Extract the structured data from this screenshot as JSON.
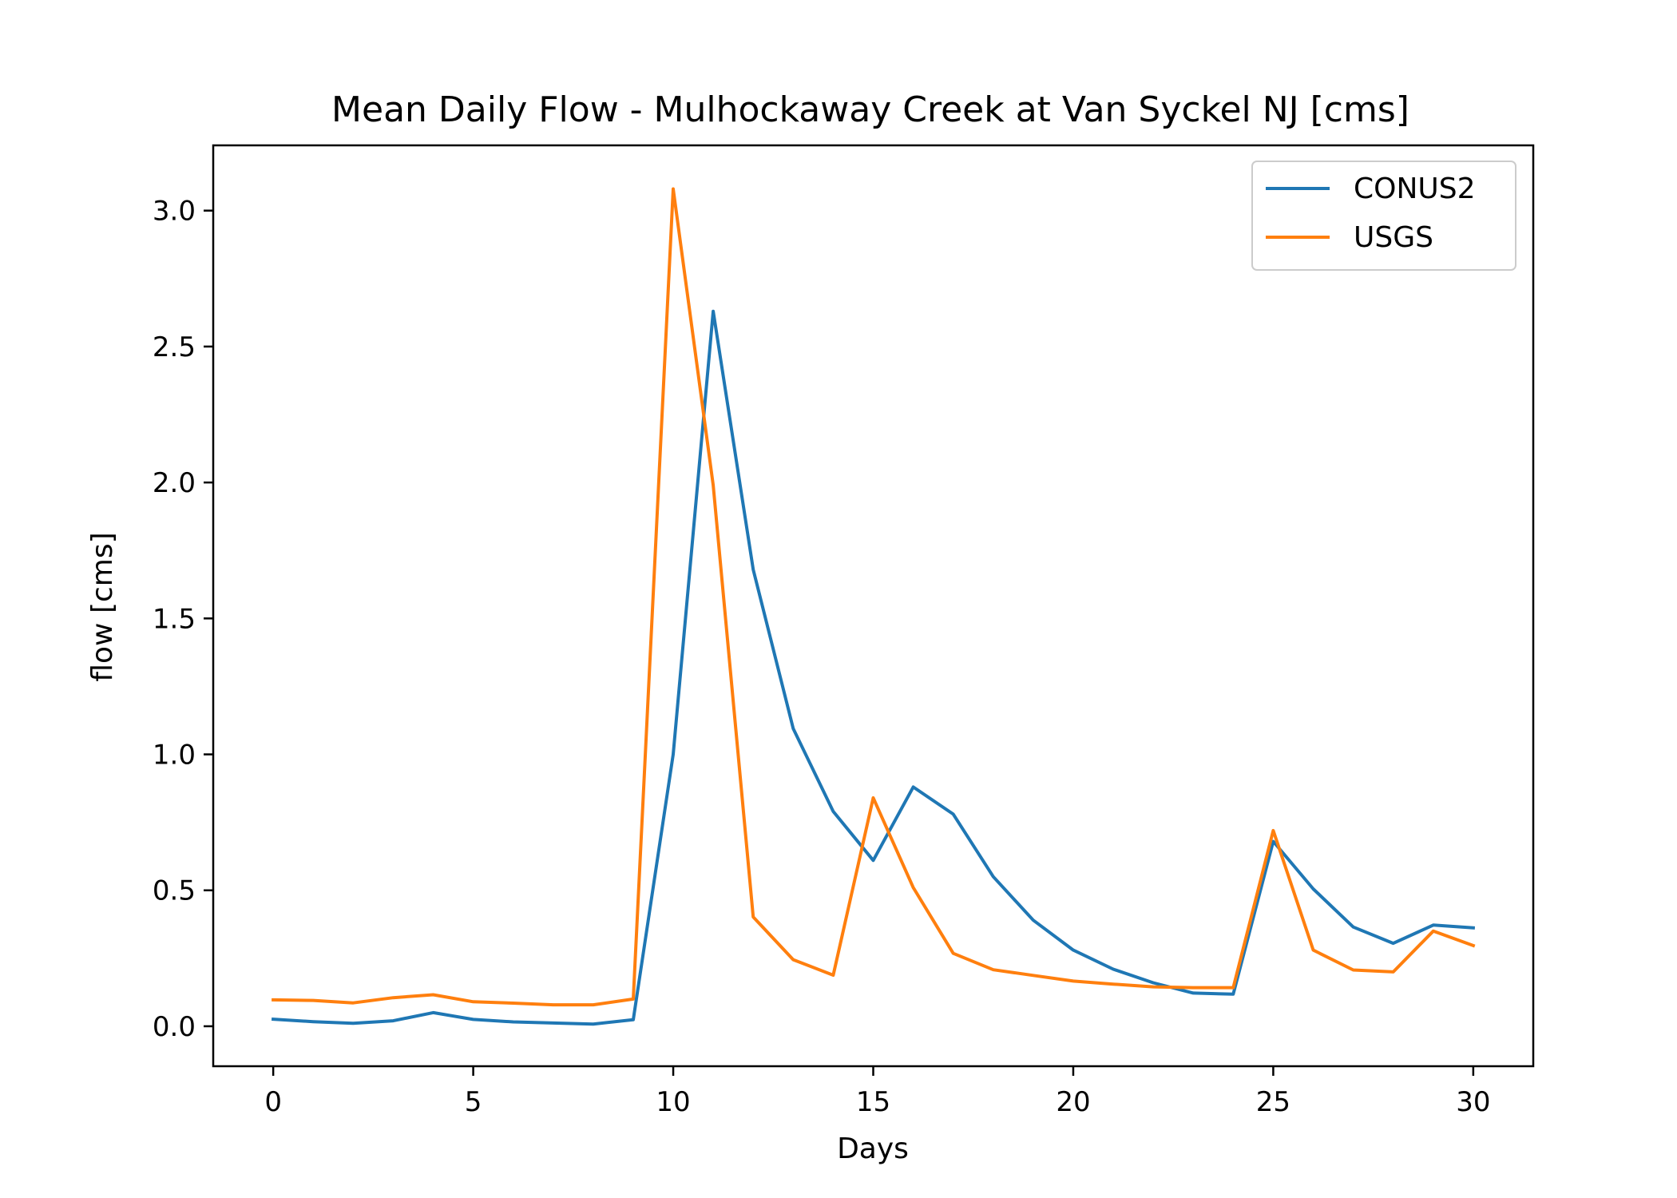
{
  "chart_data": {
    "type": "line",
    "title": "Mean Daily Flow - Mulhockaway Creek at Van Syckel NJ [cms]",
    "xlabel": "Days",
    "ylabel": "flow [cms]",
    "xlim": [
      -1.5,
      31.5
    ],
    "ylim": [
      -0.147,
      3.24
    ],
    "xticks": [
      0,
      5,
      10,
      15,
      20,
      25,
      30
    ],
    "xtick_labels": [
      "0",
      "5",
      "10",
      "15",
      "20",
      "25",
      "30"
    ],
    "yticks": [
      0.0,
      0.5,
      1.0,
      1.5,
      2.0,
      2.5,
      3.0
    ],
    "ytick_labels": [
      "0.0",
      "0.5",
      "1.0",
      "1.5",
      "2.0",
      "2.5",
      "3.0"
    ],
    "grid": false,
    "legend_position": "top-right",
    "x": [
      0,
      1,
      2,
      3,
      4,
      5,
      6,
      7,
      8,
      9,
      10,
      11,
      12,
      13,
      14,
      15,
      16,
      17,
      18,
      19,
      20,
      21,
      22,
      23,
      24,
      25,
      26,
      27,
      28,
      29,
      30
    ],
    "series": [
      {
        "name": "CONUS2",
        "color": "#1f77b4",
        "values": [
          0.026,
          0.017,
          0.011,
          0.02,
          0.05,
          0.025,
          0.016,
          0.012,
          0.008,
          0.024,
          1.0,
          2.63,
          1.68,
          1.095,
          0.79,
          0.61,
          0.88,
          0.78,
          0.55,
          0.39,
          0.28,
          0.21,
          0.16,
          0.122,
          0.118,
          0.68,
          0.505,
          0.365,
          0.305,
          0.372,
          0.362
        ]
      },
      {
        "name": "USGS",
        "color": "#ff7f0e",
        "values": [
          0.097,
          0.095,
          0.086,
          0.105,
          0.116,
          0.09,
          0.085,
          0.079,
          0.079,
          0.1,
          3.08,
          1.99,
          0.402,
          0.245,
          0.188,
          0.84,
          0.51,
          0.268,
          0.208,
          0.187,
          0.166,
          0.155,
          0.145,
          0.142,
          0.142,
          0.72,
          0.28,
          0.207,
          0.2,
          0.35,
          0.297
        ]
      }
    ]
  }
}
